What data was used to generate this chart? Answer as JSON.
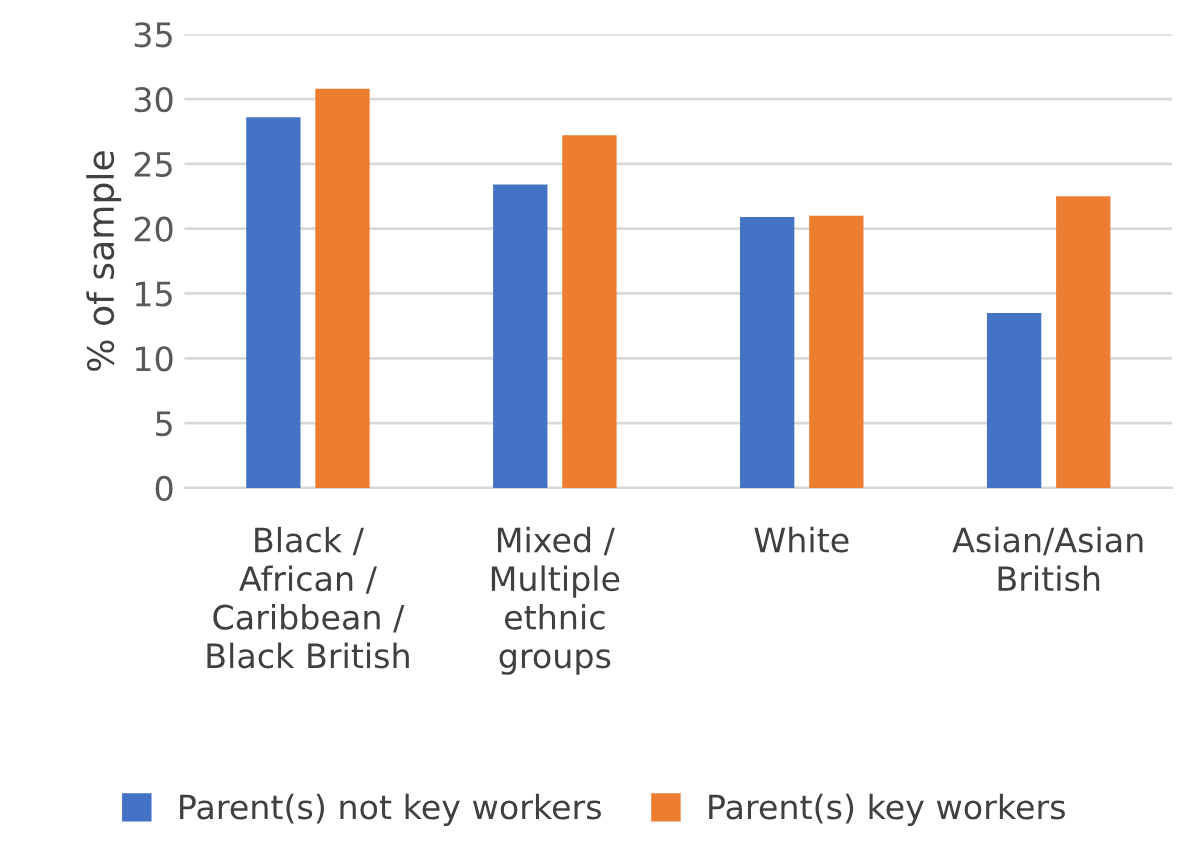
{
  "chart_data": {
    "type": "bar",
    "categories": [
      "Black /\nAfrican /\nCaribbean /\nBlack British",
      "Mixed /\nMultiple\nethnic\ngroups",
      "White",
      "Asian/Asian\nBritish"
    ],
    "series": [
      {
        "name": "Parent(s) not key workers",
        "color": "#4472c4",
        "values": [
          28.6,
          23.4,
          20.9,
          13.5
        ]
      },
      {
        "name": "Parent(s) key workers",
        "color": "#ed7d31",
        "values": [
          30.8,
          27.2,
          21.0,
          22.5
        ]
      }
    ],
    "ylabel": "% of sample",
    "ylim": [
      0,
      35
    ],
    "yticks": [
      0,
      5,
      10,
      15,
      20,
      25,
      30,
      35
    ],
    "grid": "y",
    "legend": "bottom"
  }
}
